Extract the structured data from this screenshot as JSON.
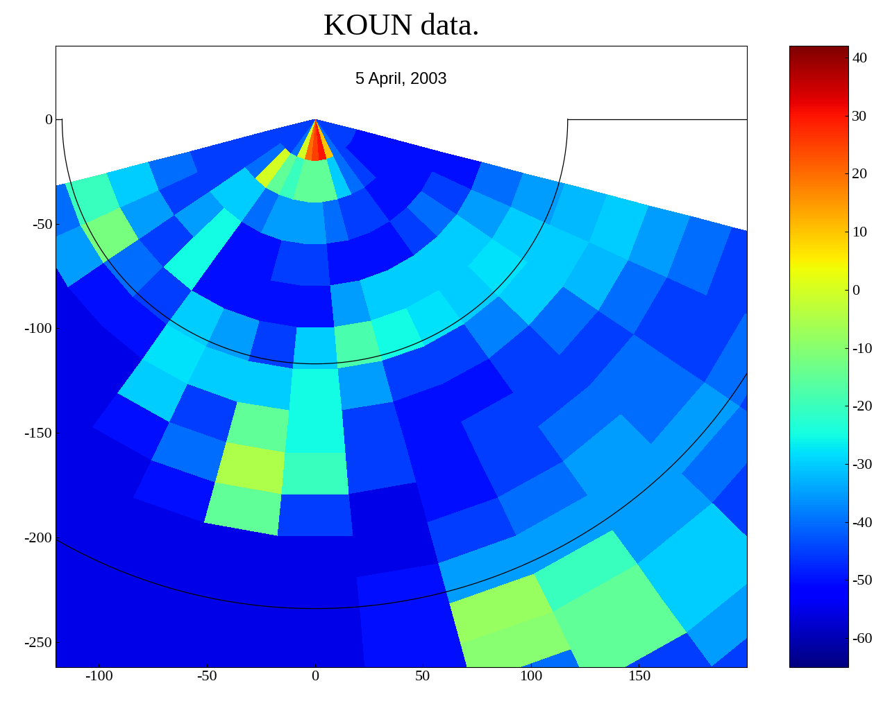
{
  "chart_data": {
    "type": "heatmap",
    "title": "KOUN data.",
    "subtitle": "5 April, 2003",
    "xlim": [
      -120,
      200
    ],
    "ylim": [
      -262,
      35
    ],
    "xticks": [
      -100,
      -50,
      0,
      50,
      100,
      150
    ],
    "yticks": [
      -250,
      -200,
      -150,
      -100,
      -50,
      0
    ],
    "color": "jet",
    "colorbar_range": [
      -65,
      42
    ],
    "colorbar_ticks": [
      -60,
      -50,
      -40,
      -30,
      -20,
      -10,
      0,
      10,
      20,
      30,
      40
    ],
    "range_rings": [
      117,
      234
    ],
    "azimuth_edges": [
      105,
      115,
      125,
      135,
      145,
      155,
      165,
      175,
      185,
      195,
      205,
      215,
      225,
      235,
      245,
      255
    ],
    "range_edges": [
      0,
      20,
      40,
      60,
      80,
      100,
      120,
      140,
      160,
      180,
      200,
      220,
      240,
      260,
      280,
      300,
      320,
      340
    ],
    "cells": [
      [
        -45,
        -45,
        -45,
        -45,
        -40,
        10,
        30,
        25,
        20,
        0,
        -40,
        -45,
        -45,
        -45,
        -45
      ],
      [
        -50,
        -50,
        -50,
        -45,
        -40,
        -30,
        -15,
        -15,
        -15,
        -20,
        -15,
        0,
        -40,
        -45,
        -45
      ],
      [
        -50,
        -50,
        -50,
        -50,
        -45,
        -45,
        -40,
        -35,
        -35,
        -35,
        -40,
        -30,
        -30,
        -45,
        -45
      ],
      [
        -50,
        -45,
        -40,
        -45,
        -50,
        -50,
        -50,
        -45,
        -45,
        -50,
        -50,
        -25,
        -35,
        -45,
        -40
      ],
      [
        -40,
        -35,
        -30,
        -30,
        -30,
        -30,
        -35,
        -50,
        -50,
        -50,
        -50,
        -25,
        -45,
        -35,
        -30
      ],
      [
        -35,
        -30,
        -28,
        -30,
        -28,
        -25,
        -18,
        -30,
        -45,
        -35,
        -30,
        -45,
        -40,
        -12,
        -20
      ],
      [
        -32,
        -30,
        -30,
        -38,
        -45,
        -45,
        -35,
        -25,
        -30,
        -30,
        -28,
        -50,
        -50,
        -35,
        -40
      ],
      [
        -30,
        -32,
        -40,
        -45,
        -50,
        -50,
        -45,
        -25,
        -15,
        -45,
        -30,
        -55,
        -55,
        -55,
        -55
      ],
      [
        -35,
        -40,
        -45,
        -45,
        -45,
        -50,
        -45,
        -20,
        -5,
        -40,
        -50,
        -55,
        -55,
        -55,
        -55
      ],
      [
        -40,
        -45,
        -40,
        -40,
        -45,
        -50,
        -55,
        -45,
        -15,
        -50,
        -55,
        -55,
        -55,
        -55,
        -55
      ],
      [
        -45,
        -45,
        -40,
        -35,
        -40,
        -45,
        -55,
        -55,
        -55,
        -55,
        -55,
        -55,
        -55,
        -55,
        -55
      ],
      [
        -45,
        -40,
        -35,
        -35,
        -35,
        -35,
        -50,
        -55,
        -55,
        -55,
        -55,
        -55,
        -55,
        -55,
        -55
      ],
      [
        -45,
        -45,
        -40,
        -35,
        -20,
        -8,
        -50,
        -55,
        -55,
        -55,
        -55,
        -55,
        -55,
        -55,
        -55
      ],
      [
        -45,
        -45,
        -45,
        -30,
        -15,
        -10,
        -50,
        -55,
        -55,
        -55,
        -55,
        -55,
        -55,
        -55,
        -55
      ],
      [
        -45,
        -45,
        -45,
        -30,
        -15,
        -40,
        -55,
        -55,
        -55,
        -55,
        -55,
        -55,
        -55,
        -55,
        -55
      ],
      [
        -45,
        -45,
        -45,
        -35,
        -45,
        -50,
        -55,
        -55,
        -55,
        -55,
        -55,
        -55,
        -55,
        -55,
        -55
      ],
      [
        -45,
        -45,
        -45,
        -45,
        -50,
        -55,
        -55,
        -55,
        -55,
        -55,
        -55,
        -55,
        -55,
        -55,
        -55
      ]
    ]
  }
}
